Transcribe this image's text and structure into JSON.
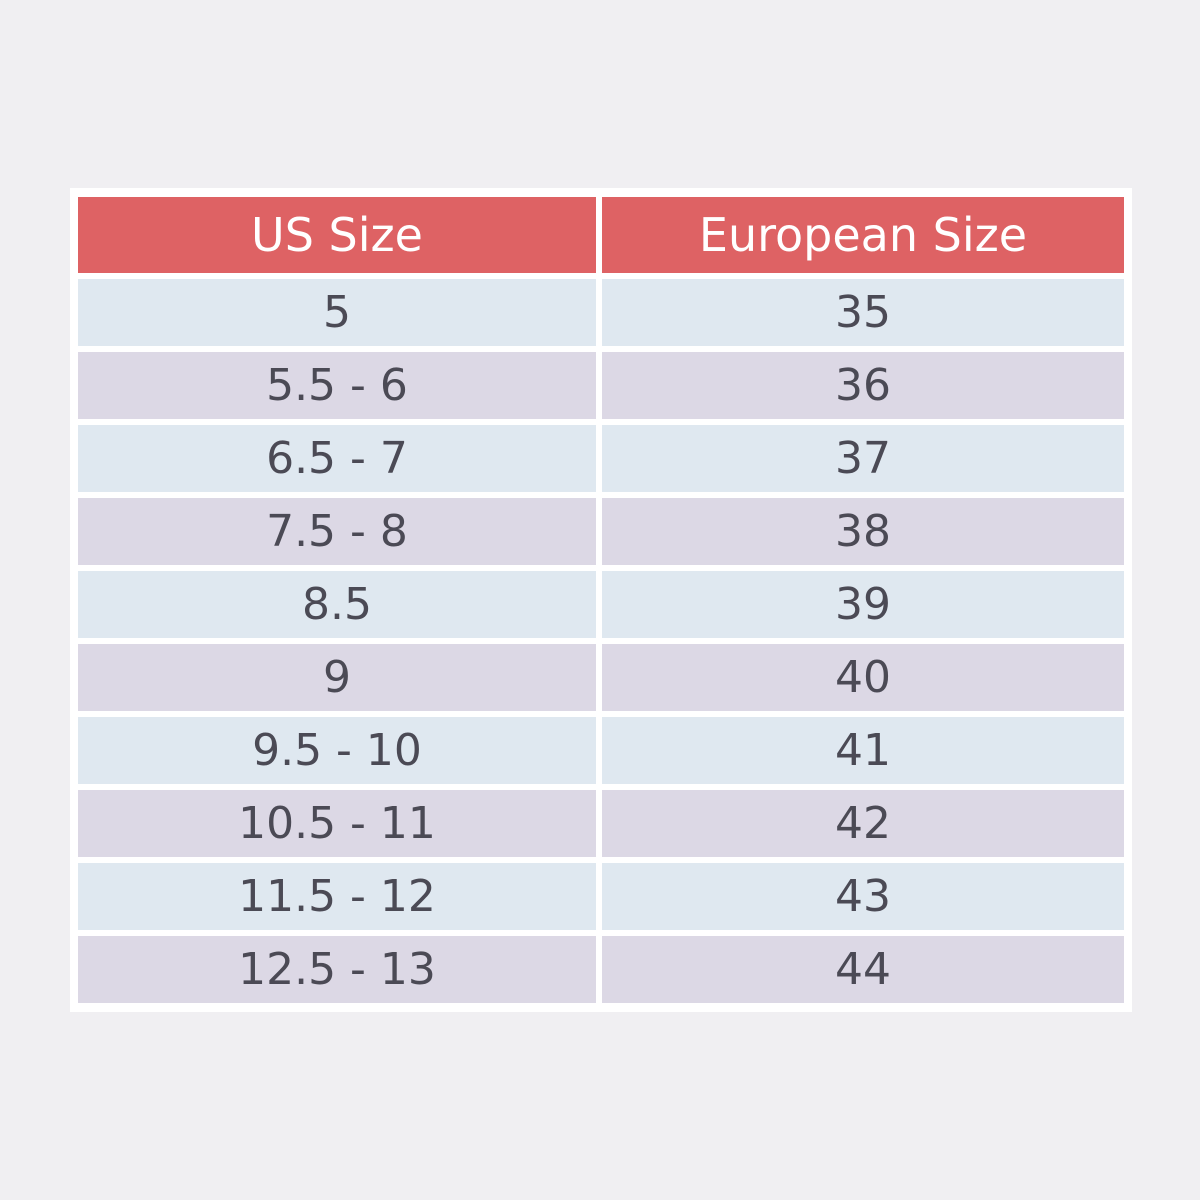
{
  "table": {
    "header": [
      "US Size",
      "European Size"
    ],
    "rows": [
      [
        "5",
        "35"
      ],
      [
        "5.5 - 6",
        "36"
      ],
      [
        "6.5 - 7",
        "37"
      ],
      [
        "7.5 - 8",
        "38"
      ],
      [
        "8.5",
        "39"
      ],
      [
        "9",
        "40"
      ],
      [
        "9.5 - 10",
        "41"
      ],
      [
        "10.5 - 11",
        "42"
      ],
      [
        "11.5 - 12",
        "43"
      ],
      [
        "12.5 - 13",
        "44"
      ]
    ]
  }
}
